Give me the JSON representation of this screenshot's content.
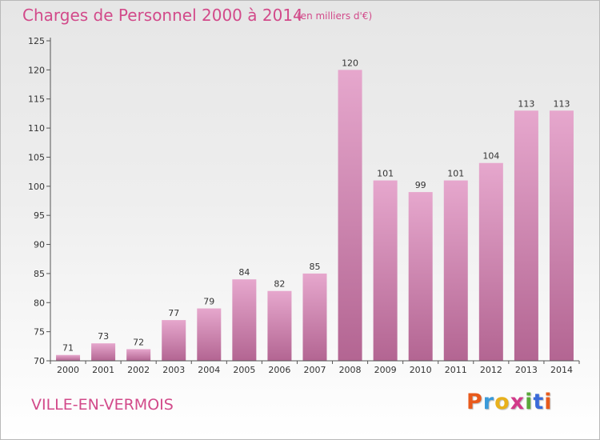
{
  "header": {
    "title": "Charges de Personnel 2000 à 2014",
    "subtitle": "(en milliers d'€)"
  },
  "footer": {
    "commune": "VILLE-EN-VERMOIS",
    "logo_text": "Proxiti"
  },
  "colors": {
    "title": "#d24a8a",
    "bar_light": "#e6a7cd",
    "bar_dark": "#b36592",
    "logo": [
      "#e85a1c",
      "#3a9ad9",
      "#e8b11c",
      "#d23a8a",
      "#5aa83a",
      "#3a6ad9",
      "#e85a1c"
    ]
  },
  "chart_data": {
    "type": "bar",
    "title": "Charges de Personnel 2000 à 2014",
    "xlabel": "",
    "ylabel": "",
    "categories": [
      "2000",
      "2001",
      "2002",
      "2003",
      "2004",
      "2005",
      "2006",
      "2007",
      "2008",
      "2009",
      "2010",
      "2011",
      "2012",
      "2013",
      "2014"
    ],
    "values": [
      71,
      73,
      72,
      77,
      79,
      84,
      82,
      85,
      120,
      101,
      99,
      101,
      104,
      113,
      113
    ],
    "ylim": [
      70,
      125
    ],
    "yticks": [
      70,
      75,
      80,
      85,
      90,
      95,
      100,
      105,
      110,
      115,
      120,
      125
    ],
    "grid": false,
    "legend": "none"
  }
}
